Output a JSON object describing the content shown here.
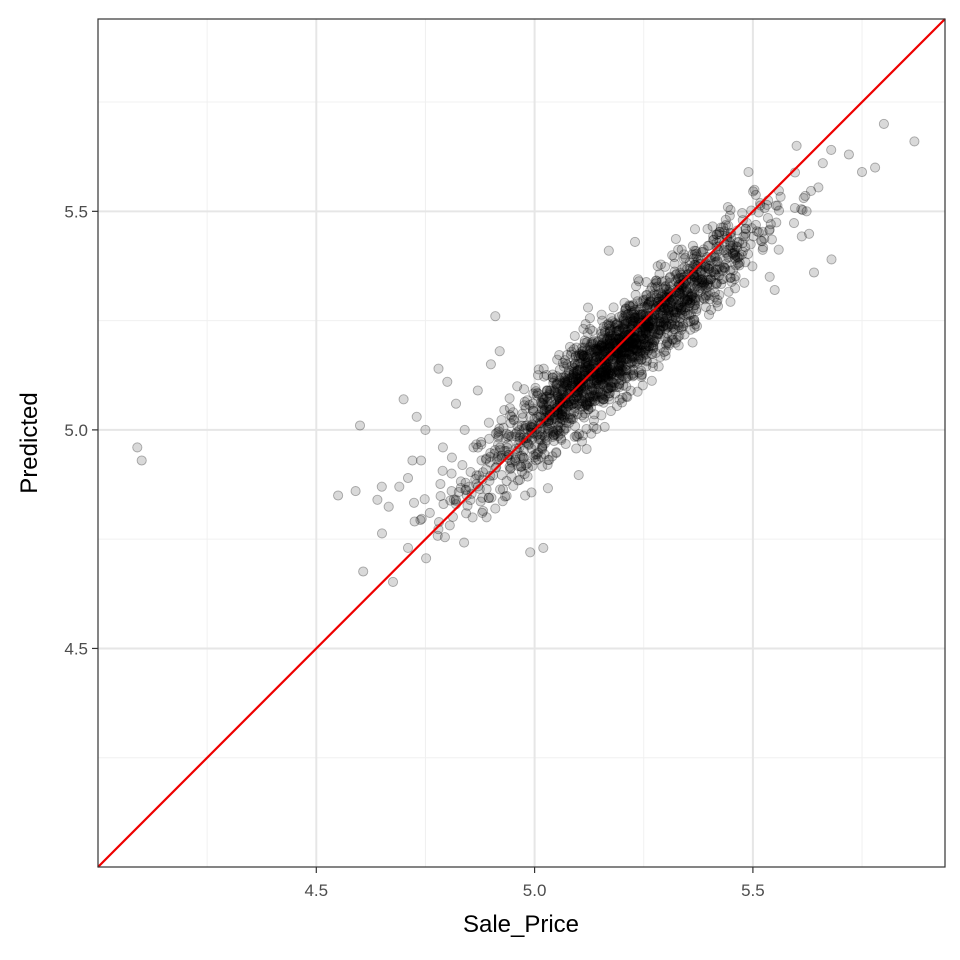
{
  "chart_data": {
    "type": "scatter",
    "title": "",
    "xlabel": "Sale_Price",
    "ylabel": "Predicted",
    "xlim": [
      4.0,
      5.94
    ],
    "ylim": [
      4.0,
      5.94
    ],
    "x_ticks": [
      "4.5",
      "5.0",
      "5.5"
    ],
    "x_tick_values": [
      4.5,
      5.0,
      5.5
    ],
    "y_ticks": [
      "4.5",
      "5.0",
      "5.5"
    ],
    "y_tick_values": [
      4.5,
      5.0,
      5.5
    ],
    "x_minor_ticks": [
      4.25,
      4.75,
      5.25,
      5.75
    ],
    "y_minor_ticks": [
      4.25,
      4.75,
      5.25,
      5.75
    ],
    "grid": true,
    "legend": "none",
    "point_color": "#000000",
    "point_opacity": 0.15,
    "reference_line": {
      "slope": 1,
      "intercept": 0,
      "color": "#ee0000"
    },
    "points_outlier": [
      [
        4.09,
        4.96
      ],
      [
        4.1,
        4.93
      ],
      [
        4.55,
        4.85
      ],
      [
        4.59,
        4.86
      ],
      [
        4.6,
        5.01
      ],
      [
        4.64,
        4.84
      ],
      [
        4.65,
        4.87
      ],
      [
        4.69,
        4.87
      ],
      [
        4.7,
        5.07
      ],
      [
        4.71,
        4.73
      ],
      [
        4.71,
        4.89
      ],
      [
        4.72,
        4.93
      ],
      [
        4.73,
        5.03
      ],
      [
        4.74,
        4.93
      ],
      [
        4.75,
        5.0
      ],
      [
        4.76,
        4.81
      ],
      [
        4.78,
        5.14
      ],
      [
        4.79,
        4.96
      ],
      [
        4.8,
        5.11
      ],
      [
        4.81,
        4.9
      ],
      [
        4.81,
        4.86
      ],
      [
        4.82,
        5.06
      ],
      [
        4.82,
        4.83
      ],
      [
        4.84,
        5.0
      ],
      [
        4.85,
        4.87
      ],
      [
        4.86,
        4.96
      ],
      [
        4.87,
        5.09
      ],
      [
        4.88,
        4.81
      ],
      [
        4.89,
        4.8
      ],
      [
        4.9,
        5.15
      ],
      [
        4.91,
        5.26
      ],
      [
        4.92,
        5.18
      ],
      [
        4.91,
        4.82
      ],
      [
        4.99,
        4.72
      ],
      [
        5.02,
        4.73
      ],
      [
        5.6,
        5.65
      ],
      [
        5.66,
        5.61
      ],
      [
        5.72,
        5.63
      ],
      [
        5.75,
        5.59
      ],
      [
        5.8,
        5.7
      ],
      [
        5.78,
        5.6
      ],
      [
        5.87,
        5.66
      ],
      [
        5.68,
        5.39
      ],
      [
        5.64,
        5.36
      ],
      [
        5.55,
        5.32
      ],
      [
        5.49,
        5.59
      ],
      [
        5.38,
        5.38
      ],
      [
        5.45,
        5.44
      ],
      [
        5.17,
        5.41
      ],
      [
        5.23,
        5.43
      ]
    ],
    "cloud": {
      "n": 1900,
      "x_center": 5.19,
      "x_spread": 0.155,
      "slope": 0.87,
      "intercept_at_center": 5.175,
      "residual_sd": 0.05
    }
  }
}
